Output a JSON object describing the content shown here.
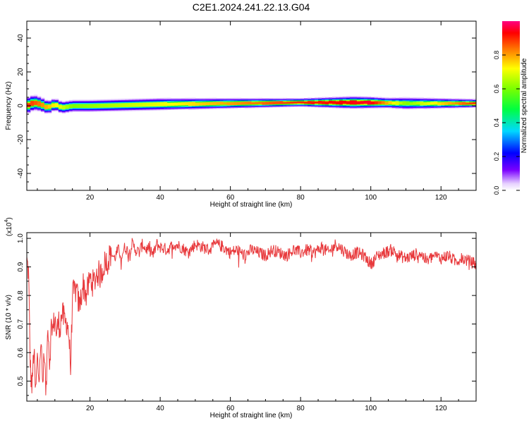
{
  "figure_title": "C2E1.2024.241.22.13.G04",
  "chart_data": [
    {
      "type": "heatmap",
      "xlabel": "Height of straight line (km)",
      "ylabel": "Frequency (Hz)",
      "xlim": [
        2,
        130
      ],
      "ylim": [
        -50,
        50
      ],
      "x_ticks": [
        20,
        40,
        60,
        80,
        100,
        120
      ],
      "y_ticks": [
        -40,
        -20,
        0,
        20,
        40
      ],
      "grid": false,
      "colorbar": {
        "label": "Normalized spectral amplitude",
        "range": [
          0,
          1
        ],
        "ticks": [
          "0.0",
          "0.2",
          "0.4",
          "0.6",
          "0.8"
        ],
        "tick_values": [
          0.0,
          0.2,
          0.4,
          0.6,
          0.8
        ],
        "colormap": "rainbow (violet-blue-cyan-green-yellow-red-magenta)"
      },
      "ridge": {
        "description": "narrow high-amplitude band near 0 Hz across all heights",
        "points": [
          [
            2,
            0
          ],
          [
            4,
            2
          ],
          [
            6,
            1
          ],
          [
            8,
            -1
          ],
          [
            10,
            1
          ],
          [
            12,
            -1
          ],
          [
            15,
            0
          ],
          [
            20,
            0
          ],
          [
            30,
            0.5
          ],
          [
            40,
            1
          ],
          [
            60,
            1.5
          ],
          [
            80,
            2
          ],
          [
            95,
            2
          ],
          [
            100,
            2
          ],
          [
            110,
            1.5
          ],
          [
            120,
            1.5
          ],
          [
            130,
            1.5
          ]
        ],
        "half_width_hz": [
          [
            2,
            4
          ],
          [
            10,
            3
          ],
          [
            20,
            3
          ],
          [
            40,
            3
          ],
          [
            60,
            2.5
          ],
          [
            80,
            2
          ],
          [
            95,
            3
          ],
          [
            105,
            2.5
          ],
          [
            110,
            3
          ],
          [
            130,
            2
          ]
        ],
        "peak_amplitude": [
          [
            2,
            0.9
          ],
          [
            5,
            0.85
          ],
          [
            15,
            0.6
          ],
          [
            40,
            0.7
          ],
          [
            60,
            0.8
          ],
          [
            80,
            0.9
          ],
          [
            100,
            0.95
          ],
          [
            110,
            0.6
          ],
          [
            130,
            0.9
          ]
        ]
      }
    },
    {
      "type": "line",
      "xlabel": "Height of straight line (km)",
      "ylabel": "SNR (10 * v/v)",
      "y_multiplier": "(x10",
      "y_multiplier_exp": "4",
      "y_multiplier_close": ")",
      "xlim": [
        2,
        130
      ],
      "ylim": [
        0.43,
        1.02
      ],
      "x_ticks": [
        20,
        40,
        60,
        80,
        100,
        120
      ],
      "y_ticks": [
        0.5,
        0.6,
        0.7,
        0.8,
        0.9,
        1.0
      ],
      "y_tick_labels": [
        "0.5",
        "0.6",
        "0.7",
        "0.8",
        "0.9",
        "1.0"
      ],
      "grid": false,
      "series": [
        {
          "color": "#e8393c",
          "x": [
            2,
            2.5,
            3,
            3.5,
            4,
            4.5,
            5,
            5.5,
            6,
            6.5,
            7,
            7.5,
            8,
            8.5,
            9,
            9.5,
            10,
            10.5,
            11,
            11.5,
            12,
            12.5,
            13,
            13.5,
            14,
            14.5,
            15,
            16,
            17,
            18,
            19,
            20,
            21,
            22,
            23,
            24,
            25,
            26,
            27,
            28,
            29,
            30,
            31,
            32,
            33,
            34,
            35,
            36,
            37,
            38,
            39,
            40,
            42,
            44,
            46,
            48,
            50,
            52,
            54,
            56,
            58,
            60,
            62,
            64,
            66,
            68,
            70,
            72,
            74,
            76,
            78,
            80,
            82,
            84,
            86,
            88,
            90,
            92,
            94,
            96,
            98,
            100,
            102,
            104,
            106,
            108,
            110,
            112,
            114,
            116,
            118,
            120,
            122,
            124,
            126,
            128,
            130
          ],
          "y": [
            0.92,
            0.88,
            0.55,
            0.47,
            0.62,
            0.45,
            0.58,
            0.5,
            0.66,
            0.48,
            0.6,
            0.44,
            0.72,
            0.56,
            0.7,
            0.68,
            0.73,
            0.66,
            0.71,
            0.69,
            0.74,
            0.72,
            0.7,
            0.71,
            0.66,
            0.54,
            0.8,
            0.82,
            0.76,
            0.84,
            0.8,
            0.86,
            0.84,
            0.88,
            0.87,
            0.91,
            0.92,
            0.95,
            0.93,
            0.96,
            0.94,
            0.97,
            0.95,
            0.98,
            0.96,
            0.95,
            0.98,
            0.96,
            0.97,
            0.94,
            0.98,
            0.97,
            0.96,
            0.98,
            0.97,
            0.95,
            0.98,
            0.97,
            0.96,
            0.98,
            0.97,
            0.95,
            0.96,
            0.94,
            0.96,
            0.95,
            0.94,
            0.96,
            0.95,
            0.94,
            0.96,
            0.95,
            0.96,
            0.95,
            0.97,
            0.95,
            0.98,
            0.96,
            0.94,
            0.95,
            0.94,
            0.91,
            0.94,
            0.95,
            0.96,
            0.94,
            0.93,
            0.94,
            0.95,
            0.92,
            0.94,
            0.93,
            0.94,
            0.92,
            0.93,
            0.92,
            0.91
          ]
        }
      ]
    }
  ]
}
